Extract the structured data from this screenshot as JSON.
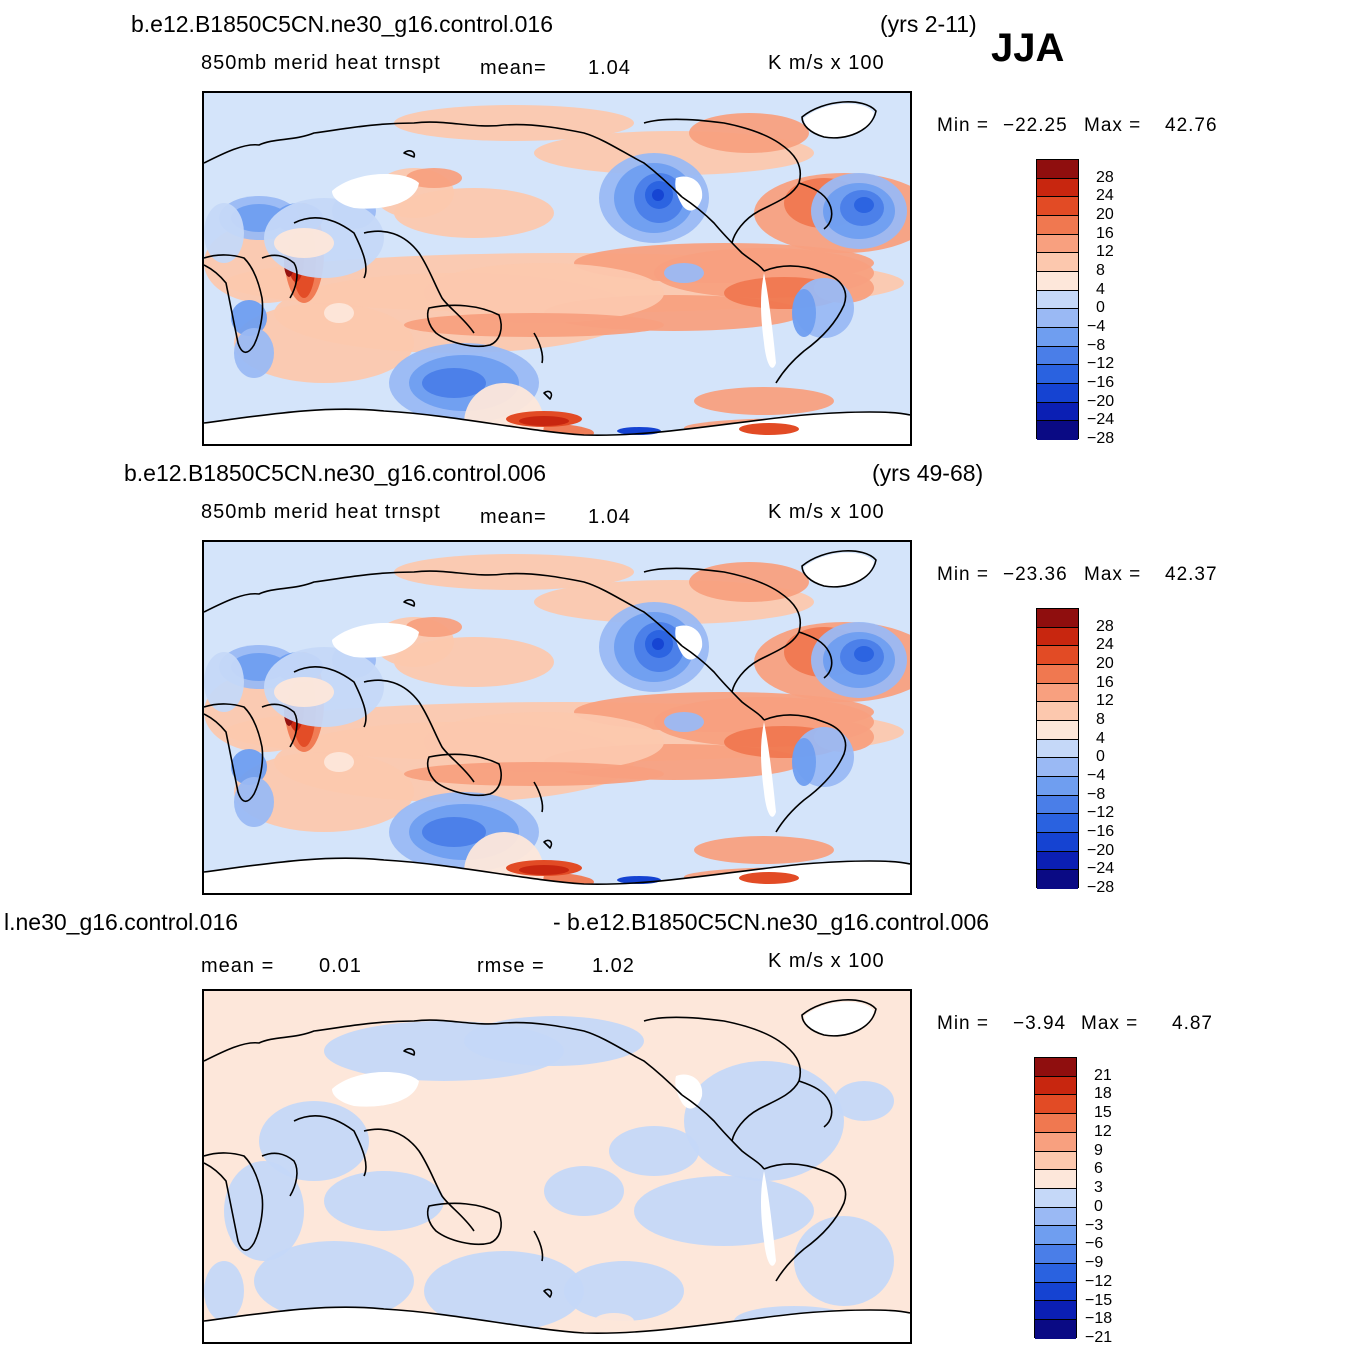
{
  "season": "JJA",
  "colors": {
    "levels_14": [
      "#0a0a84",
      "#0b1fb4",
      "#1543d2",
      "#2a62e0",
      "#4a7ee8",
      "#6f9ef0",
      "#9ab9f4",
      "#c5d8f8",
      "#fde7da",
      "#fcc8ae",
      "#f8a07f",
      "#f07850",
      "#e24b25",
      "#c8260f",
      "#8f0e0e"
    ]
  },
  "panels": [
    {
      "case": "b.e12.B1850C5CN.ne30_g16.control.016",
      "years": "(yrs 2-11)",
      "variable": "850mb  merid  heat  trnspt",
      "mean_label": "mean=",
      "mean_value": "1.04",
      "units": "K  m/s  x  100",
      "min_label": "Min  =",
      "min_value": "−22.25",
      "max_label": "Max  =",
      "max_value": "42.76",
      "colorbar_labels": [
        "28",
        "24",
        "20",
        "16",
        "12",
        "8",
        "4",
        "0",
        "−4",
        "−8",
        "−12",
        "−16",
        "−20",
        "−24",
        "−28"
      ]
    },
    {
      "case": "b.e12.B1850C5CN.ne30_g16.control.006",
      "years": "(yrs 49-68)",
      "variable": "850mb  merid  heat  trnspt",
      "mean_label": "mean=",
      "mean_value": "1.04",
      "units": "K  m/s  x  100",
      "min_label": "Min  =",
      "min_value": "−23.36",
      "max_label": "Max  =",
      "max_value": "42.37",
      "colorbar_labels": [
        "28",
        "24",
        "20",
        "16",
        "12",
        "8",
        "4",
        "0",
        "−4",
        "−8",
        "−12",
        "−16",
        "−20",
        "−24",
        "−28"
      ]
    },
    {
      "case_left": "l.ne30_g16.control.016",
      "case_right": "- b.e12.B1850C5CN.ne30_g16.control.006",
      "mean_label": "mean  =",
      "mean_value": "0.01",
      "rmse_label": "rmse  =",
      "rmse_value": "1.02",
      "units": "K  m/s  x  100",
      "min_label": "Min  =",
      "min_value": "−3.94",
      "max_label": "Max  =",
      "max_value": "4.87",
      "colorbar_labels": [
        "21",
        "18",
        "15",
        "12",
        "9",
        "6",
        "3",
        "0",
        "−3",
        "−6",
        "−9",
        "−12",
        "−15",
        "−18",
        "−21"
      ]
    }
  ]
}
